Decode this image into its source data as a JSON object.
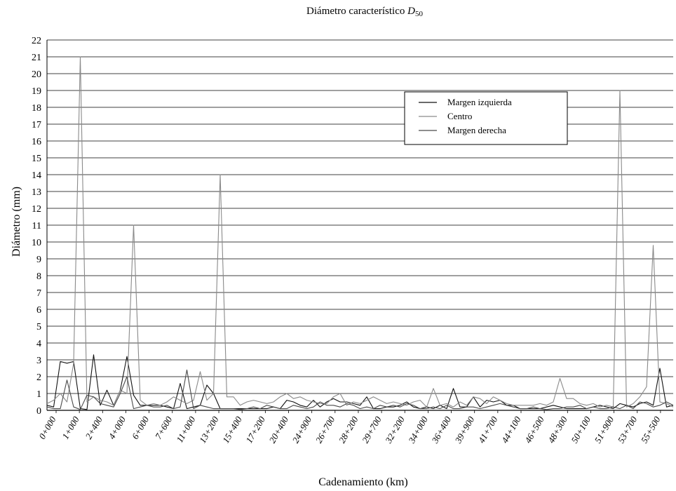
{
  "chart_data": {
    "type": "line",
    "title": "Diámetro característico ",
    "title_var": "D",
    "title_sub": "50",
    "xlabel": "Cadenamiento (km)",
    "ylabel": "Diámetro (mm)",
    "ylim": [
      0,
      22
    ],
    "yticks": [
      0,
      1,
      2,
      3,
      4,
      5,
      6,
      7,
      8,
      9,
      10,
      11,
      12,
      13,
      14,
      15,
      16,
      17,
      18,
      19,
      20,
      21,
      22
    ],
    "grid": "horizontal",
    "legend_position": "top-right",
    "x_tick_labels": [
      "0+000",
      "1+000",
      "2+400",
      "4+000",
      "6+000",
      "7+600",
      "11+000",
      "13+200",
      "15+400",
      "17+200",
      "20+400",
      "24+900",
      "26+700",
      "28+200",
      "29+700",
      "32+200",
      "34+000",
      "36+400",
      "39+900",
      "41+700",
      "44+100",
      "46+500",
      "48+300",
      "50+100",
      "51+900",
      "53+700",
      "55+500"
    ],
    "series": [
      {
        "name": "Margen izquierda",
        "color": "#111111",
        "values": [
          0.3,
          0.2,
          2.9,
          2.8,
          2.9,
          0.1,
          0.05,
          3.3,
          0.3,
          1.2,
          0.3,
          1.2,
          3.2,
          0.9,
          0.3,
          0.3,
          0.3,
          0.3,
          0.2,
          0.1,
          1.6,
          0.1,
          0.2,
          0.3,
          1.5,
          1.0,
          0.1,
          0.1,
          0.1,
          0.1,
          0.1,
          0.1,
          0.1,
          0.1,
          0.2,
          0.1,
          0.6,
          0.5,
          0.3,
          0.2,
          0.6,
          0.2,
          0.5,
          0.7,
          0.5,
          0.5,
          0.4,
          0.3,
          0.8,
          0.1,
          0.1,
          0.2,
          0.2,
          0.3,
          0.5,
          0.2,
          0.1,
          0.2,
          0.1,
          0.3,
          0.1,
          1.3,
          0.2,
          0.2,
          0.8,
          0.2,
          0.6,
          0.5,
          0.6,
          0.3,
          0.3,
          0.1,
          0.1,
          0.1,
          0.1,
          0.2,
          0.3,
          0.2,
          0.1,
          0.1,
          0.1,
          0.1,
          0.2,
          0.3,
          0.2,
          0.1,
          0.4,
          0.3,
          0.2,
          0.4,
          0.5,
          0.3,
          2.5,
          0.2,
          0.3
        ]
      },
      {
        "name": "Centro",
        "color": "#8a8a8a",
        "values": [
          0.4,
          0.6,
          1.0,
          0.5,
          2.8,
          21.0,
          0.5,
          0.8,
          0.6,
          0.5,
          0.3,
          1.2,
          1.0,
          11.0,
          0.6,
          0.3,
          0.4,
          0.3,
          0.5,
          0.8,
          0.6,
          0.4,
          0.6,
          2.3,
          0.6,
          1.0,
          14.0,
          0.8,
          0.8,
          0.3,
          0.5,
          0.6,
          0.5,
          0.4,
          0.5,
          0.8,
          1.0,
          0.7,
          0.8,
          0.6,
          0.5,
          0.4,
          0.4,
          0.8,
          1.0,
          0.3,
          0.5,
          0.4,
          0.6,
          0.8,
          0.6,
          0.4,
          0.5,
          0.4,
          0.3,
          0.5,
          0.6,
          0.2,
          1.3,
          0.3,
          0.4,
          0.2,
          0.5,
          0.3,
          0.8,
          0.7,
          0.4,
          0.8,
          0.6,
          0.4,
          0.3,
          0.3,
          0.3,
          0.3,
          0.4,
          0.3,
          0.5,
          1.9,
          0.7,
          0.7,
          0.4,
          0.3,
          0.4,
          0.2,
          0.3,
          0.2,
          19.0,
          0.2,
          0.4,
          0.8,
          1.4,
          9.8,
          0.5,
          0.4,
          0.2
        ]
      },
      {
        "name": "Margen derecha",
        "color": "#4a4a4a",
        "values": [
          0.2,
          0.1,
          0.1,
          1.8,
          0.2,
          0.05,
          0.9,
          0.8,
          0.4,
          0.3,
          0.2,
          1.0,
          2.0,
          0.1,
          0.2,
          0.3,
          0.2,
          0.2,
          0.3,
          0.1,
          0.2,
          2.4,
          0.1,
          0.3,
          0.2,
          0.1,
          0.1,
          0.1,
          0.1,
          0.05,
          0.1,
          0.2,
          0.1,
          0.3,
          0.2,
          0.1,
          0.1,
          0.3,
          0.2,
          0.1,
          0.2,
          0.5,
          0.3,
          0.3,
          0.2,
          0.4,
          0.3,
          0.1,
          0.2,
          0.1,
          0.3,
          0.2,
          0.3,
          0.2,
          0.4,
          0.3,
          0.1,
          0.1,
          0.2,
          0.1,
          0.3,
          0.1,
          0.1,
          0.2,
          0.2,
          0.1,
          0.2,
          0.3,
          0.4,
          0.3,
          0.2,
          0.1,
          0.1,
          0.2,
          0.1,
          0.05,
          0.1,
          0.1,
          0.2,
          0.2,
          0.3,
          0.1,
          0.2,
          0.1,
          0.1,
          0.2,
          0.1,
          0.3,
          0.1,
          0.5,
          0.4,
          0.2,
          0.3,
          0.5,
          0.3
        ]
      }
    ]
  }
}
